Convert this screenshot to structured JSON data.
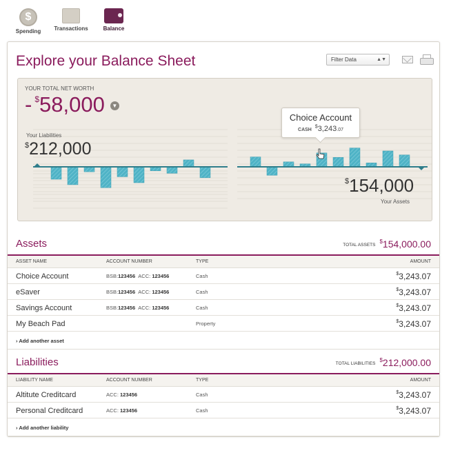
{
  "nav": [
    {
      "label": "Spending",
      "icon": "dollar-coin-icon",
      "glyph": "$",
      "active": false
    },
    {
      "label": "Transactions",
      "icon": "transactions-doc-icon",
      "active": false
    },
    {
      "label": "Balance",
      "icon": "wallet-icon",
      "active": true
    }
  ],
  "page": {
    "title": "Explore your Balance Sheet",
    "filter_label": "Filter Data"
  },
  "networth": {
    "label": "YOUR TOTAL NET WORTH",
    "sign": "-",
    "currency": "$",
    "value": "58,000"
  },
  "liabilities_summary": {
    "label": "Your Liabilities",
    "currency": "$",
    "value": "212,000"
  },
  "assets_summary": {
    "label": "Your Assets",
    "currency": "$",
    "value": "154,000"
  },
  "tooltip": {
    "title": "Choice Account",
    "type": "CASH",
    "currency": "$",
    "value": "3,243",
    "cents": ".07"
  },
  "chart_data": {
    "type": "bar",
    "liabilities_bars": [
      -25,
      -36,
      -10,
      -42,
      -20,
      -32,
      -8,
      -13,
      14,
      -22
    ],
    "assets_bars": [
      20,
      -17,
      10,
      6,
      28,
      19,
      38,
      8,
      32,
      24
    ],
    "accent_color": "#4fb3c6"
  },
  "assets": {
    "title": "Assets",
    "total_label": "TOTAL ASSETS",
    "total_currency": "$",
    "total": "154,000.00",
    "columns": [
      "ASSET NAME",
      "ACCOUNT NUMBER",
      "TYPE",
      "AMOUNT"
    ],
    "rows": [
      {
        "name": "Choice Account",
        "bsb_label": "BSB:",
        "bsb": "123456",
        "acc_label": "ACC:",
        "acc": "123456",
        "type": "Cash",
        "currency": "$",
        "amount": "3,243.07"
      },
      {
        "name": "eSaver",
        "bsb_label": "BSB:",
        "bsb": "123456",
        "acc_label": "ACC:",
        "acc": "123456",
        "type": "Cash",
        "currency": "$",
        "amount": "3,243.07"
      },
      {
        "name": "Savings Account",
        "bsb_label": "BSB:",
        "bsb": "123456",
        "acc_label": "ACC:",
        "acc": "123456",
        "type": "Cash",
        "currency": "$",
        "amount": "3,243.07"
      },
      {
        "name": "My Beach Pad",
        "bsb_label": "",
        "bsb": "",
        "acc_label": "",
        "acc": "",
        "type": "Property",
        "currency": "$",
        "amount": "3,243.07"
      }
    ],
    "add_label": "Add another asset"
  },
  "liabilities": {
    "title": "Liabilities",
    "total_label": "TOTAL LIABILITIES",
    "total_currency": "$",
    "total": "212,000.00",
    "columns": [
      "LIABILITY NAME",
      "ACCOUNT NUMBER",
      "TYPE",
      "AMOUNT"
    ],
    "rows": [
      {
        "name": "Altitute Creditcard",
        "acc_label": "ACC:",
        "acc": "123456",
        "type": "Cash",
        "currency": "$",
        "amount": "3,243.07"
      },
      {
        "name": "Personal Creditcard",
        "acc_label": "ACC:",
        "acc": "123456",
        "type": "Cash",
        "currency": "$",
        "amount": "3,243.07"
      }
    ],
    "add_label": "Add another liability"
  }
}
